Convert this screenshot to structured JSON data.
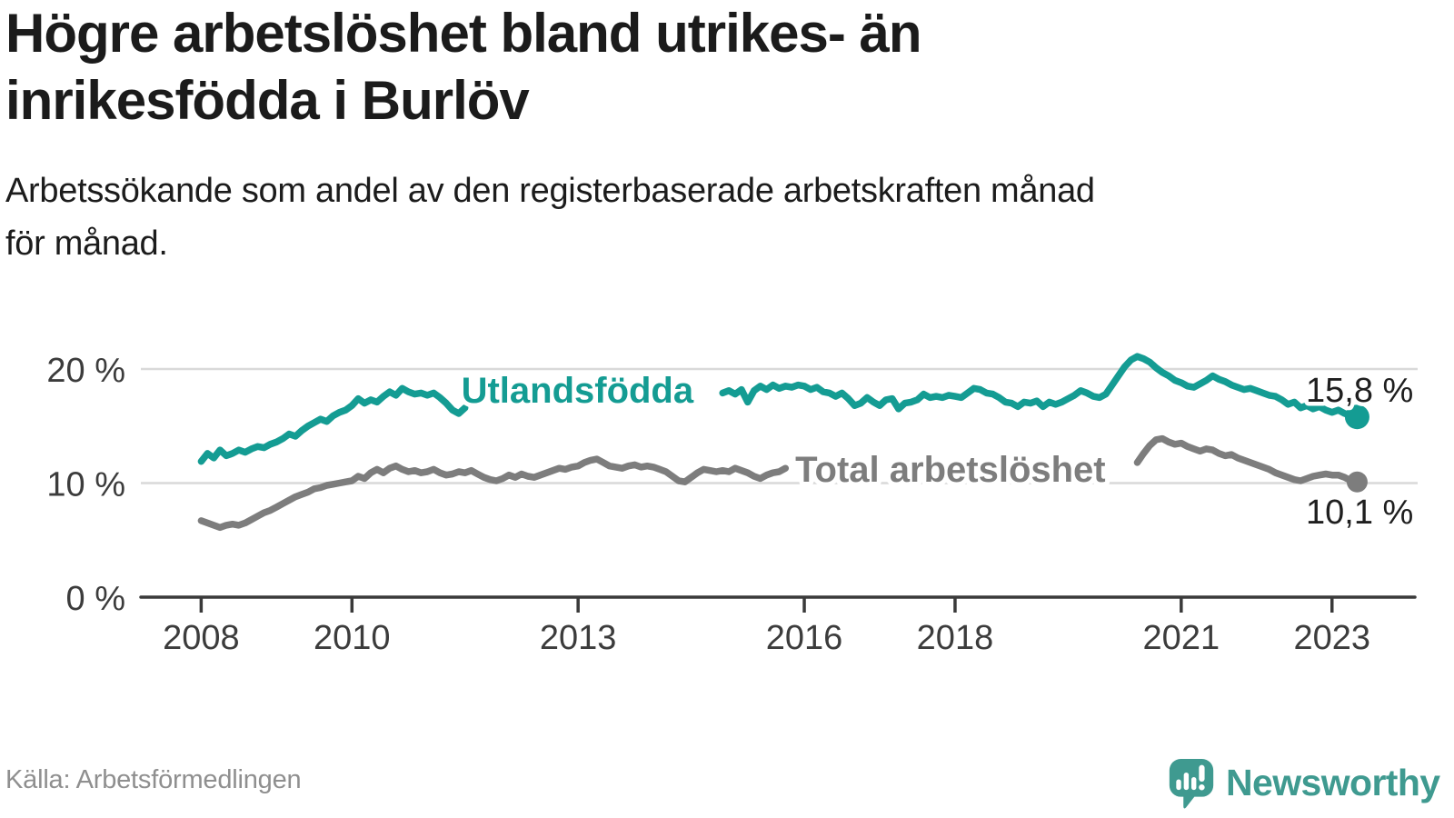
{
  "header": {
    "title_line1": "Högre arbetslöshet bland utrikes- än",
    "title_line2": "inrikesfödda i Burlöv",
    "subtitle_line1": "Arbetssökande som andel av den registerbaserade arbetskraften månad",
    "subtitle_line2": "för månad."
  },
  "footer": {
    "source": "Källa: Arbetsförmedlingen",
    "brand": "Newsworthy",
    "brand_color": "#3f9a90"
  },
  "chart_data": {
    "type": "line",
    "frequency": "monthly",
    "unit": "%",
    "x_axis": {
      "min": 2007.2,
      "max": 2024.1,
      "ticks": [
        2008,
        2010,
        2013,
        2016,
        2018,
        2021,
        2023
      ]
    },
    "y_axis": {
      "min": 0,
      "max": 22,
      "ticks": [
        0,
        10,
        20
      ],
      "tick_labels": [
        "0 %",
        "10 %",
        "20 %"
      ],
      "grid": true
    },
    "style": {
      "grid_color": "#d9d9d9",
      "axis_color": "#3a3a3a",
      "tick_text_color": "#3c3c3c",
      "end_label_color": "#1f1f1f",
      "background": "#ffffff"
    },
    "series": [
      {
        "id": "total",
        "name": "Total arbetslöshet",
        "color": "#7d7d7d",
        "dot_radius": 11.5,
        "line_label": {
          "text": "Total arbetslöshet",
          "x": 2015.88,
          "y": 11.25
        },
        "end_label": {
          "text": "10,1 %",
          "x": 2024.08,
          "y": 7.55
        },
        "end_value": 10.1,
        "segments": [
          {
            "start": 2008.0,
            "values": [
              6.7,
              6.5,
              6.3,
              6.1,
              6.3,
              6.4,
              6.3,
              6.5,
              6.8,
              7.1,
              7.4,
              7.6,
              7.9,
              8.2,
              8.5,
              8.8,
              9.0,
              9.2,
              9.5,
              9.6,
              9.8,
              9.9,
              10.0,
              10.1,
              10.2,
              10.6,
              10.4,
              10.9,
              11.2,
              10.9,
              11.3,
              11.5,
              11.2,
              11.0,
              11.1,
              10.9,
              11.0,
              11.2,
              10.9,
              10.7,
              10.8,
              11.0,
              10.9,
              11.1,
              10.8,
              10.5,
              10.3,
              10.2,
              10.4,
              10.7,
              10.5,
              10.8,
              10.6,
              10.5,
              10.7,
              10.9,
              11.1,
              11.3,
              11.2,
              11.4,
              11.5,
              11.8,
              12.0,
              12.1,
              11.8,
              11.5,
              11.4,
              11.3,
              11.5,
              11.6,
              11.4,
              11.5,
              11.4,
              11.2,
              11.0,
              10.6,
              10.2,
              10.1,
              10.5,
              10.9,
              11.2,
              11.1,
              11.0,
              11.1,
              11.0,
              11.3,
              11.1,
              10.9,
              10.6,
              10.4,
              10.7,
              10.9,
              11.0,
              11.3
            ]
          },
          {
            "start": 2020.417,
            "values": [
              11.8,
              12.6,
              13.3,
              13.8,
              13.9,
              13.6,
              13.4,
              13.5,
              13.2,
              13.0,
              12.8,
              13.0,
              12.9,
              12.6,
              12.4,
              12.5,
              12.2,
              12.0,
              11.8,
              11.6,
              11.4,
              11.2,
              10.9,
              10.7,
              10.5,
              10.3,
              10.2,
              10.4,
              10.6,
              10.7,
              10.8,
              10.7,
              10.7,
              10.5,
              10.2,
              10.1
            ]
          }
        ]
      },
      {
        "id": "utlandsfodda",
        "name": "Utlandsfödda",
        "color": "#149c93",
        "dot_radius": 13.5,
        "line_label": {
          "text": "Utlandsfödda",
          "x": 2011.45,
          "y": 18.15
        },
        "end_label": {
          "text": "15,8 %",
          "x": 2024.08,
          "y": 18.25
        },
        "end_value": 15.8,
        "segments": [
          {
            "start": 2008.0,
            "values": [
              11.9,
              12.6,
              12.2,
              12.9,
              12.4,
              12.6,
              12.9,
              12.7,
              13.0,
              13.2,
              13.1,
              13.4,
              13.6,
              13.9,
              14.3,
              14.1,
              14.6,
              15.0,
              15.3,
              15.6,
              15.4,
              15.9,
              16.2,
              16.4,
              16.8,
              17.4,
              17.0,
              17.3,
              17.1,
              17.6,
              18.0,
              17.7,
              18.3,
              18.0,
              17.8,
              17.9,
              17.7,
              17.9,
              17.5,
              17.0,
              16.4,
              16.1,
              16.6
            ]
          },
          {
            "start": 2014.917,
            "values": [
              17.9,
              18.1,
              17.8,
              18.2,
              17.1,
              18.1,
              18.5,
              18.2,
              18.6,
              18.3,
              18.5,
              18.4,
              18.6,
              18.5,
              18.2,
              18.4,
              18.0,
              17.9,
              17.6,
              17.9,
              17.4,
              16.8,
              17.0,
              17.5,
              17.1,
              16.8,
              17.3,
              17.4,
              16.5,
              17.0,
              17.1,
              17.3,
              17.8,
              17.5,
              17.6,
              17.5,
              17.7,
              17.6,
              17.5,
              17.9,
              18.3,
              18.2,
              17.9,
              17.8,
              17.5,
              17.1,
              17.0,
              16.7,
              17.1,
              17.0,
              17.2,
              16.7,
              17.1,
              16.9,
              17.1,
              17.4,
              17.7,
              18.1,
              17.9,
              17.6,
              17.5,
              17.8,
              18.6,
              19.4,
              20.2,
              20.8,
              21.1,
              20.9,
              20.6,
              20.1,
              19.7,
              19.4,
              19.0,
              18.8,
              18.5,
              18.4,
              18.7,
              19.0,
              19.4,
              19.1,
              18.9,
              18.6,
              18.4,
              18.2,
              18.3,
              18.1,
              17.9,
              17.7,
              17.6,
              17.3,
              16.9,
              17.1,
              16.6,
              16.8,
              16.5,
              16.7,
              16.4,
              16.2,
              16.4,
              16.1,
              15.9,
              15.8
            ]
          }
        ]
      }
    ]
  }
}
